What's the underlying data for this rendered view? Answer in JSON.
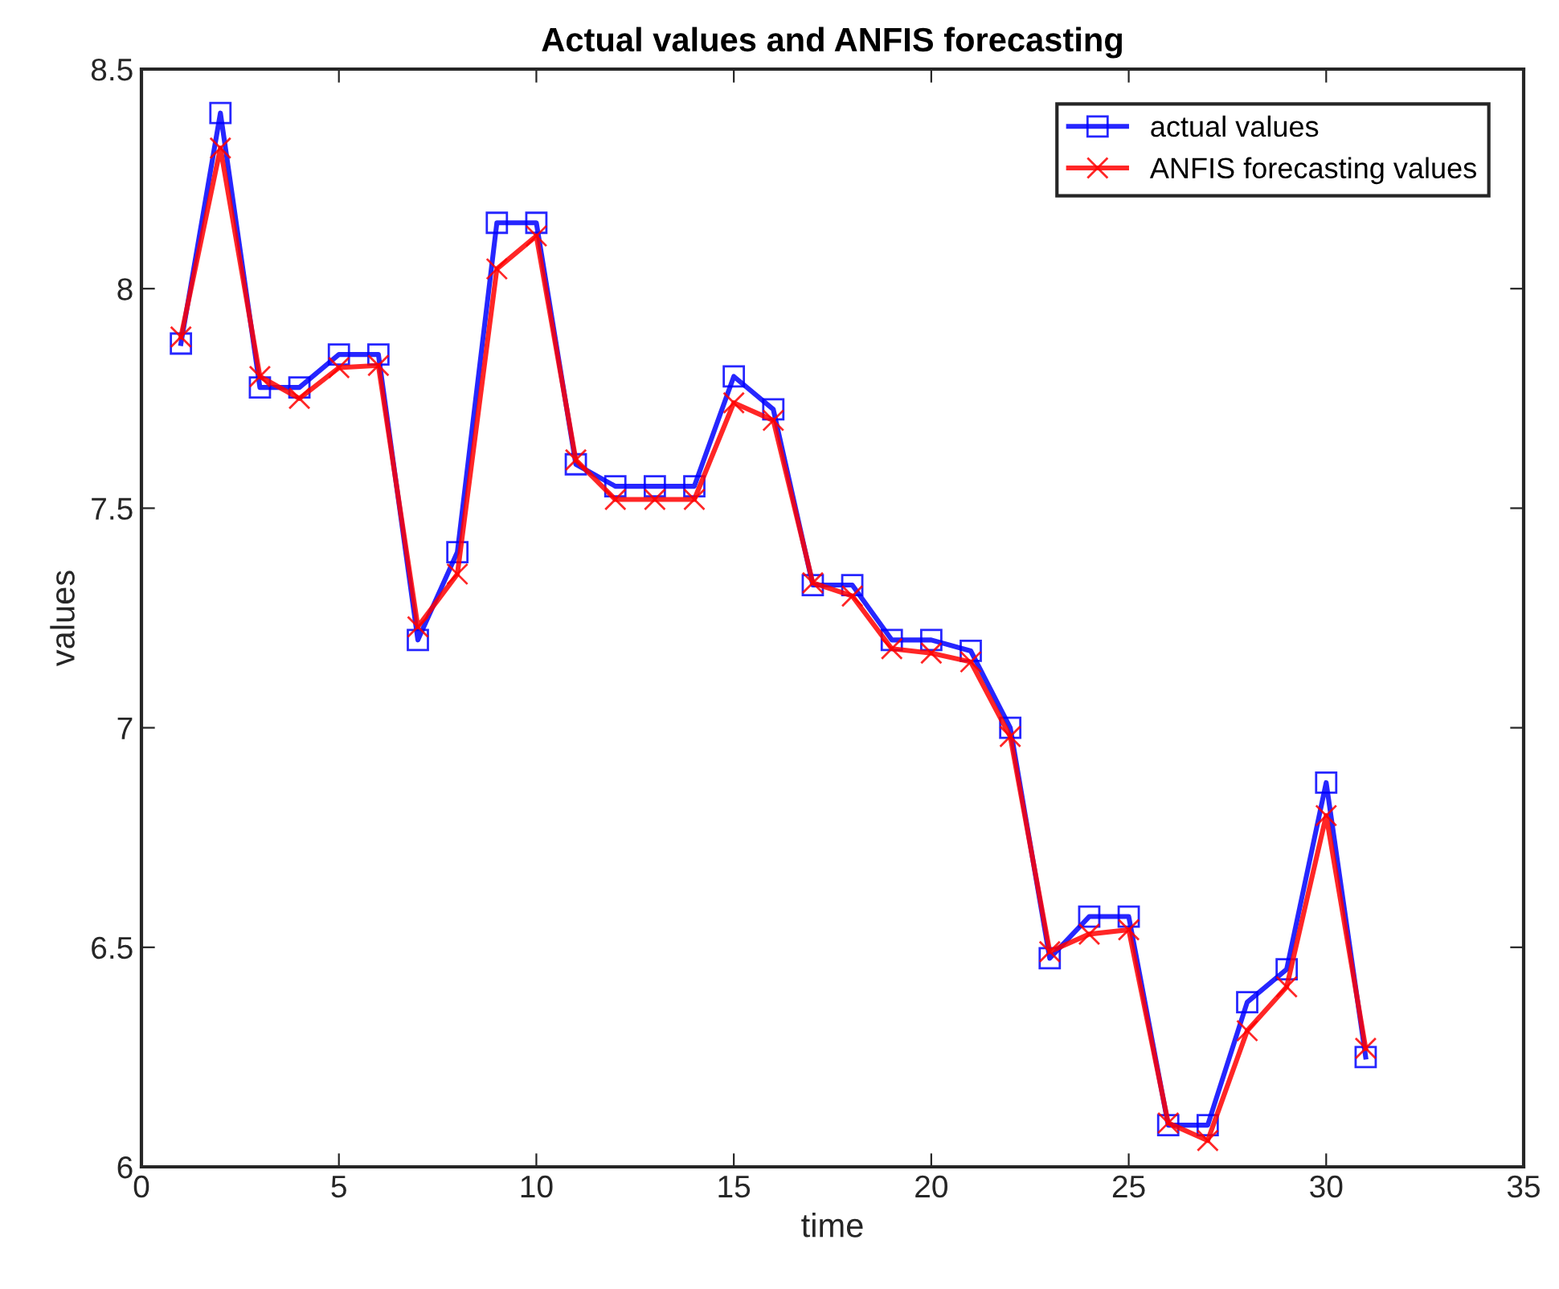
{
  "chart_data": {
    "type": "line",
    "title": "Actual values and ANFIS forecasting",
    "xlabel": "time",
    "ylabel": "values",
    "x": [
      1,
      2,
      3,
      4,
      5,
      6,
      7,
      8,
      9,
      10,
      11,
      12,
      13,
      14,
      15,
      16,
      17,
      18,
      19,
      20,
      21,
      22,
      23,
      24,
      25,
      26,
      27,
      28,
      29,
      30,
      31
    ],
    "series": [
      {
        "name": "actual values",
        "color": "#0000ff",
        "marker": "square",
        "values": [
          7.875,
          8.4,
          7.775,
          7.775,
          7.85,
          7.85,
          7.2,
          7.4,
          8.15,
          8.15,
          7.6,
          7.55,
          7.55,
          7.55,
          7.8,
          7.725,
          7.325,
          7.325,
          7.2,
          7.2,
          7.175,
          7.0,
          6.475,
          6.57,
          6.57,
          6.095,
          6.095,
          6.375,
          6.45,
          6.875,
          6.25
        ]
      },
      {
        "name": "ANFIS forecasting values",
        "color": "#ff0000",
        "marker": "cross",
        "values": [
          7.89,
          8.32,
          7.8,
          7.75,
          7.82,
          7.825,
          7.23,
          7.35,
          8.045,
          8.12,
          7.61,
          7.52,
          7.52,
          7.52,
          7.74,
          7.7,
          7.33,
          7.3,
          7.18,
          7.17,
          7.15,
          6.98,
          6.49,
          6.53,
          6.54,
          6.1,
          6.06,
          6.31,
          6.41,
          6.8,
          6.27
        ]
      }
    ],
    "xlim": [
      0,
      35
    ],
    "xticks": [
      0,
      5,
      10,
      15,
      20,
      25,
      30,
      35
    ],
    "ylim": [
      6,
      8.5
    ],
    "yticks": [
      6,
      6.5,
      7,
      7.5,
      8,
      8.5
    ],
    "grid": false,
    "legend": "top right",
    "line_style": "solid"
  }
}
